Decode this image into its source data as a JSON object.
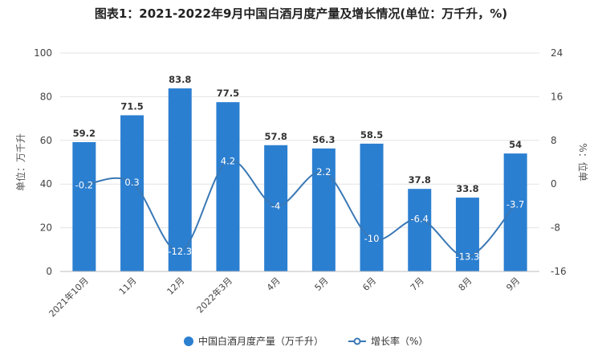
{
  "chart_data": {
    "type": "bar",
    "title": "图表1：2021-2022年9月中国白酒月度产量及增长情况(单位：万千升，%)",
    "categories": [
      "2021年10月",
      "11月",
      "12月",
      "2022年3月",
      "4月",
      "5月",
      "6月",
      "7月",
      "8月",
      "9月"
    ],
    "series": [
      {
        "name": "中国白酒月度产量（万千升）",
        "type": "bar",
        "axis": "left",
        "color": "#2b7fd1",
        "values": [
          59.2,
          71.5,
          83.8,
          77.5,
          57.8,
          56.3,
          58.5,
          37.8,
          33.8,
          54
        ],
        "labels": [
          "59.2",
          "71.5",
          "83.8",
          "77.5",
          "57.8",
          "56.3",
          "58.5",
          "37.8",
          "33.8",
          "54"
        ]
      },
      {
        "name": "增长率（%）",
        "type": "line",
        "axis": "right",
        "color": "#3a78b5",
        "values": [
          -0.2,
          0.3,
          -12.3,
          4.2,
          -4,
          2.2,
          -10,
          -6.4,
          -13.3,
          -3.7
        ],
        "labels": [
          "-0.2",
          "0.3",
          "-12.3",
          "4.2",
          "-4",
          "2.2",
          "-10",
          "-6.4",
          "-13.3",
          "-3.7"
        ]
      }
    ],
    "ylabel": "单位：万千升",
    "y2label": "%：位单",
    "ylim": [
      0,
      100
    ],
    "y2lim": [
      -16,
      24
    ],
    "yticks": [
      "0",
      "20",
      "40",
      "60",
      "80",
      "100"
    ],
    "y2ticks": [
      "-16",
      "-8",
      "0",
      "8",
      "16",
      "24"
    ],
    "grid": true,
    "legend_position": "bottom"
  }
}
